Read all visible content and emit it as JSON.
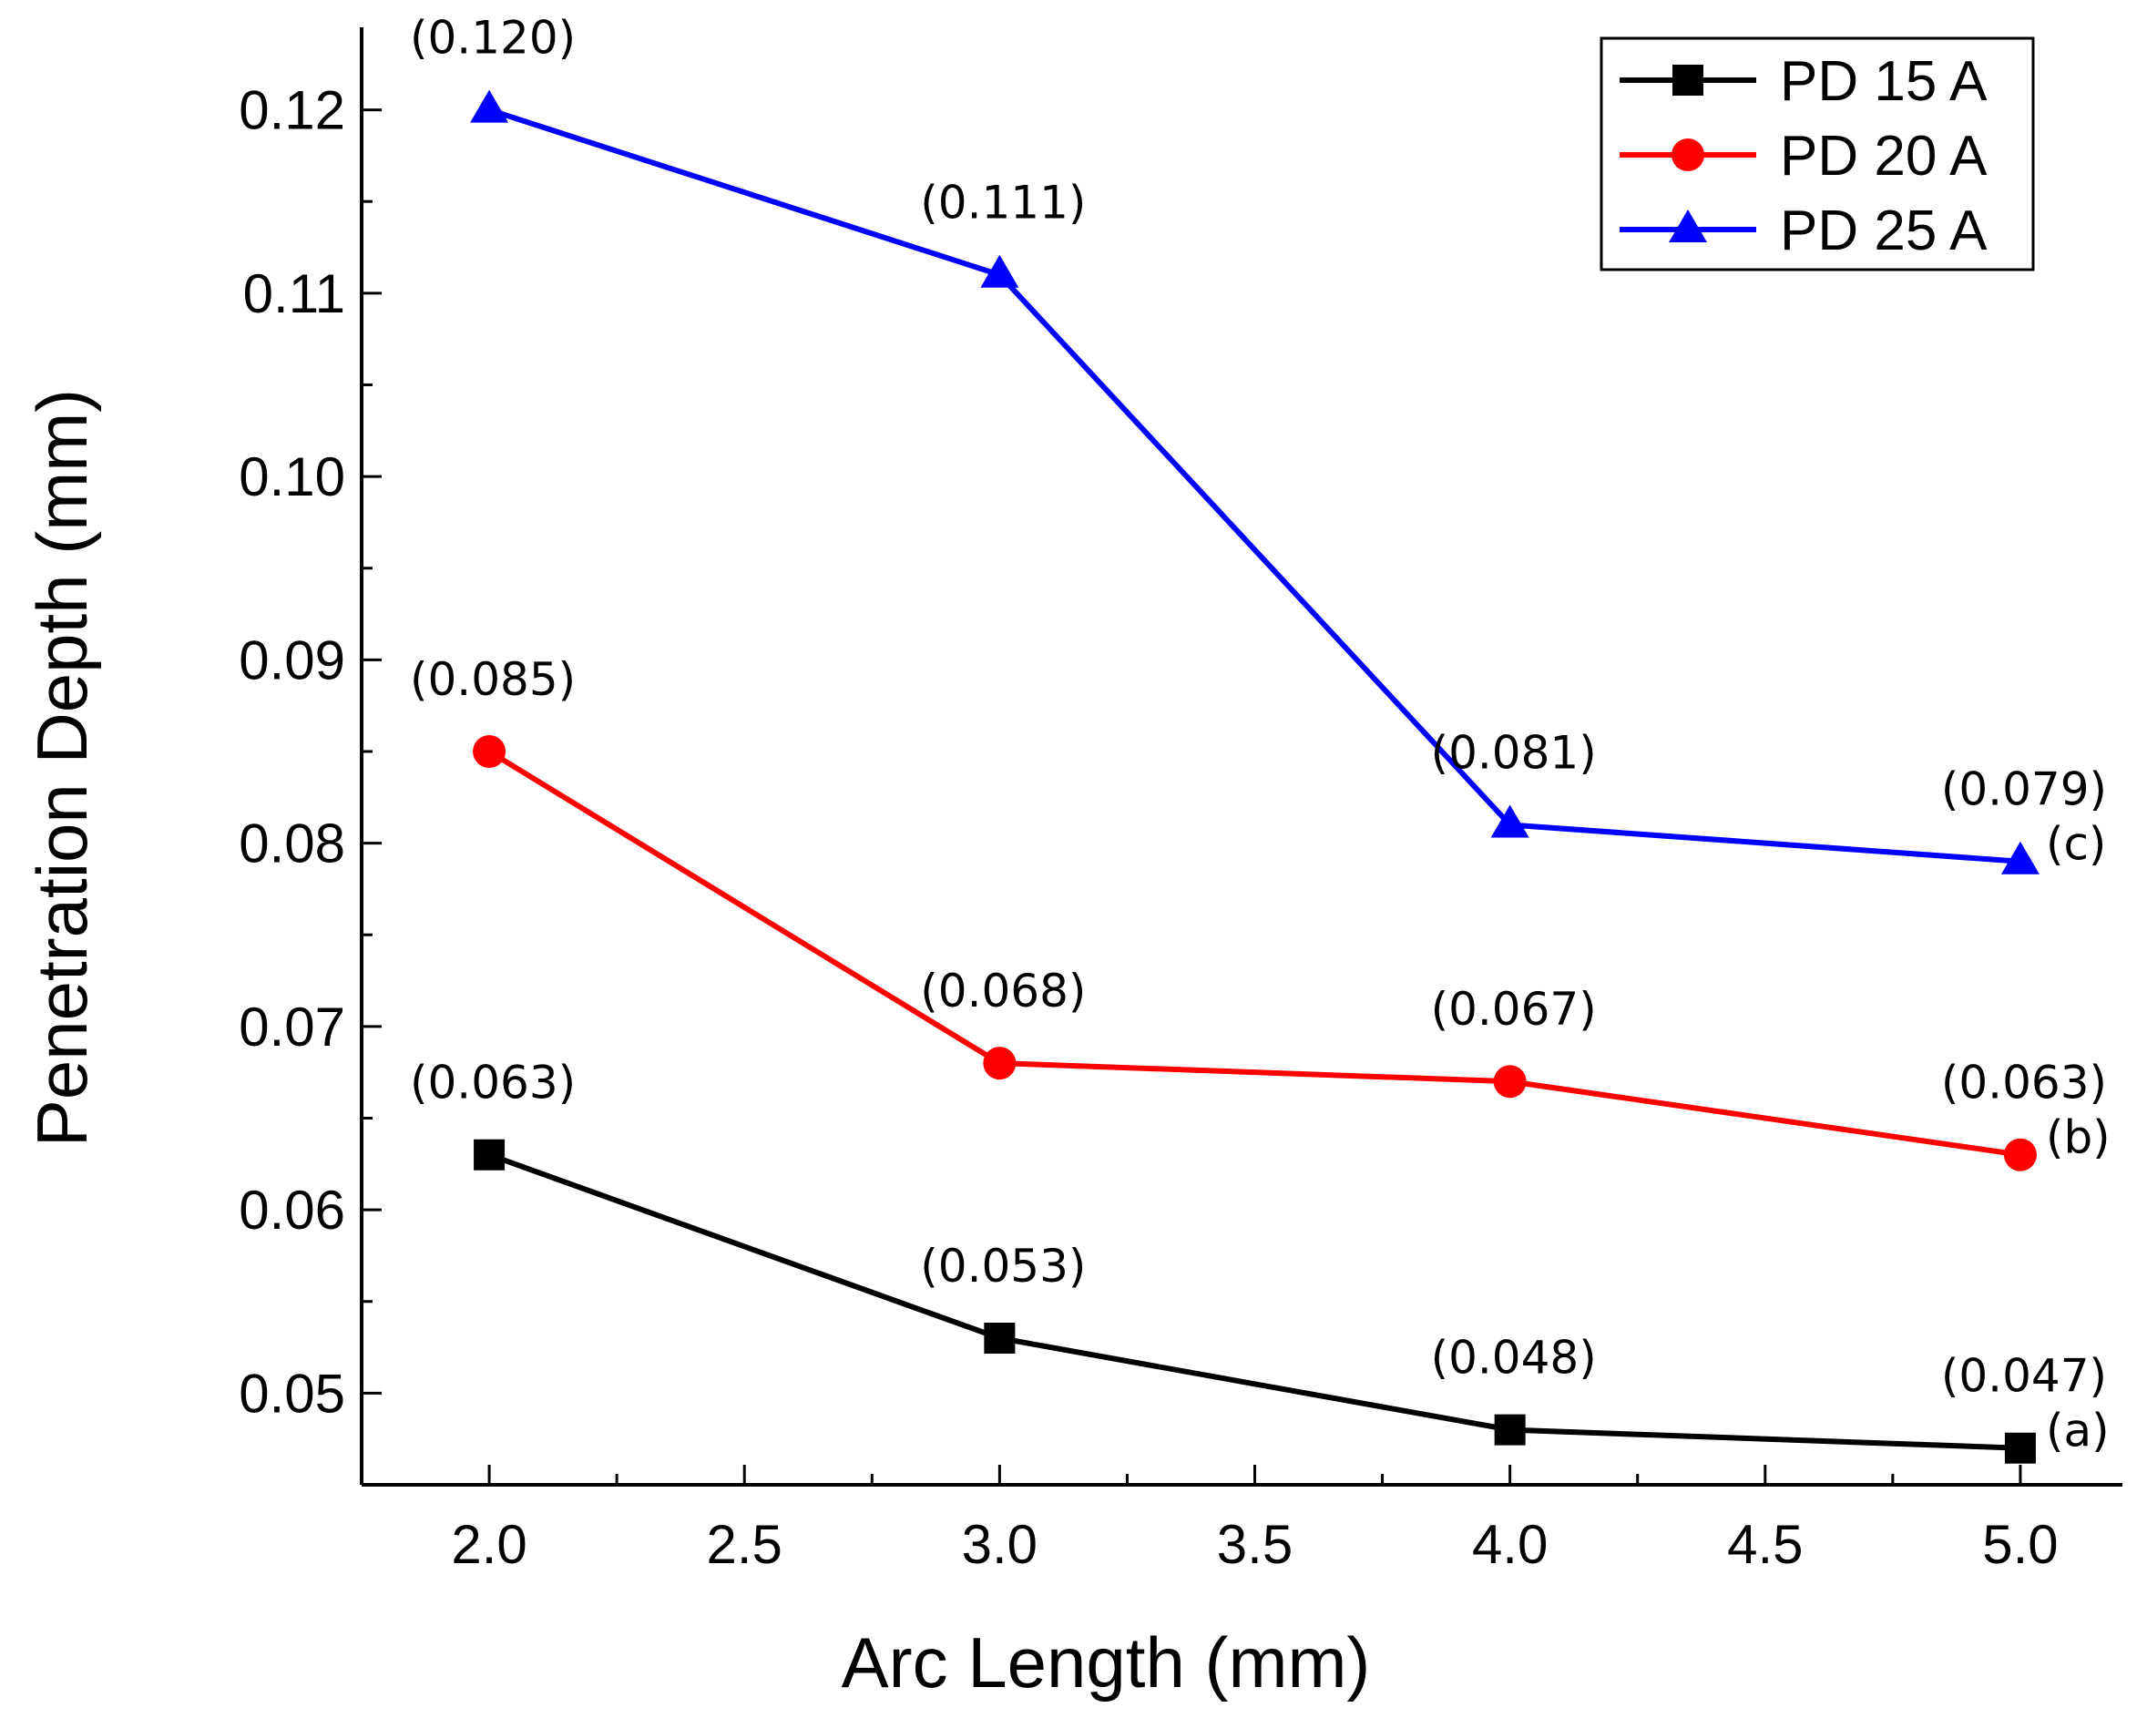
{
  "chart_data": {
    "type": "line",
    "title": "",
    "xlabel": "Arc Length (mm)",
    "ylabel": "Penetration Depth (mm)",
    "x": [
      2.0,
      3.0,
      4.0,
      5.0
    ],
    "xlim": [
      1.75,
      5.2
    ],
    "ylim": [
      0.045,
      0.1245
    ],
    "x_ticks": [
      2.0,
      2.5,
      3.0,
      3.5,
      4.0,
      4.5,
      5.0
    ],
    "x_tick_labels": [
      "2.0",
      "2.5",
      "3.0",
      "3.5",
      "4.0",
      "4.5",
      "5.0"
    ],
    "y_ticks": [
      0.05,
      0.06,
      0.07,
      0.08,
      0.09,
      0.1,
      0.11,
      0.12
    ],
    "y_tick_labels": [
      "0.05",
      "0.06",
      "0.07",
      "0.08",
      "0.09",
      "0.10",
      "0.11",
      "0.12"
    ],
    "grid": false,
    "legend_position": "top-right",
    "series": [
      {
        "name": "PD 15 A",
        "color": "#000000",
        "marker": "square",
        "values": [
          0.063,
          0.053,
          0.048,
          0.047
        ],
        "labels": [
          "(0.063)",
          "(0.053)",
          "(0.048)",
          "(0.047)"
        ],
        "end_annotation": "(a)"
      },
      {
        "name": "PD 20 A",
        "color": "#ff0000",
        "marker": "circle",
        "values": [
          0.085,
          0.068,
          0.067,
          0.063
        ],
        "labels": [
          "(0.085)",
          "(0.068)",
          "(0.067)",
          "(0.063)"
        ],
        "end_annotation": "(b)"
      },
      {
        "name": "PD 25 A",
        "color": "#0000ff",
        "marker": "triangle",
        "values": [
          0.12,
          0.111,
          0.081,
          0.079
        ],
        "labels": [
          "(0.120)",
          "(0.111)",
          "(0.081)",
          "(0.079)"
        ],
        "end_annotation": "(c)"
      }
    ]
  }
}
